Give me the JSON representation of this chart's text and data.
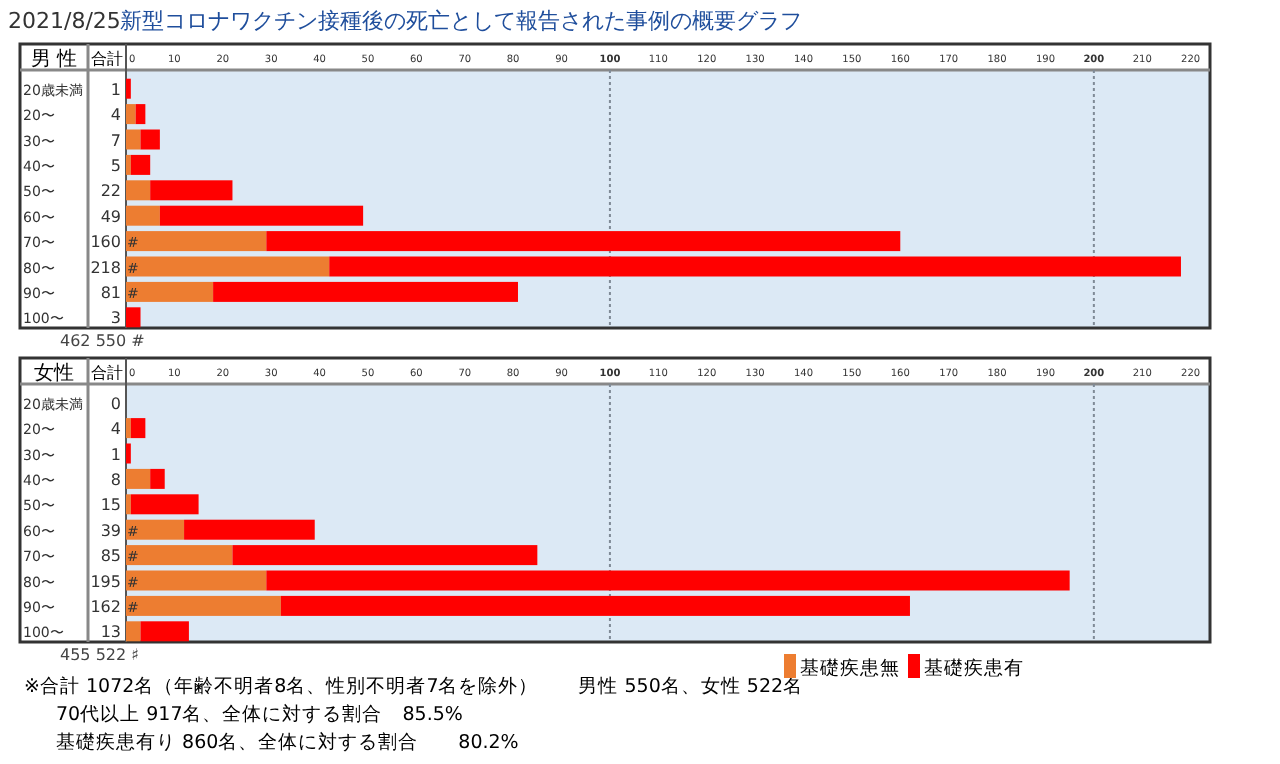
{
  "chart_data": [
    {
      "type": "bar",
      "orientation": "horizontal",
      "stacked": true,
      "title": "2021/8/25",
      "subtitle": "新型コロナワクチン接種後の死亡として報告された事例の概要グラフ",
      "ylabel": "男 性",
      "categories": [
        "20歳未満",
        "20〜",
        "30〜",
        "40〜",
        "50〜",
        "60〜",
        "70〜",
        "80〜",
        "90〜",
        "100〜"
      ],
      "series": [
        {
          "color": "#ed7d31",
          "values": [
            0,
            2,
            3,
            1,
            5,
            7,
            29,
            42,
            18,
            0
          ],
          "value_labels": [
            null,
            null,
            null,
            null,
            null,
            null,
            "#",
            "#",
            "#",
            null
          ]
        },
        {
          "color": "#ff0000",
          "values": [
            1,
            2,
            4,
            4,
            17,
            42,
            131,
            176,
            63,
            3
          ]
        }
      ],
      "totals": [
        "1",
        "4",
        "7",
        "5",
        "22",
        "49",
        "160",
        "218",
        "81",
        "3"
      ],
      "xlim": [
        0,
        224
      ],
      "xticks": [
        0,
        10,
        20,
        30,
        40,
        50,
        60,
        70,
        80,
        90,
        100,
        110,
        120,
        130,
        140,
        150,
        160,
        170,
        180,
        190,
        200,
        210,
        220
      ],
      "ref_lines": [
        {
          "axis": "x",
          "value": 100,
          "line_style": "dotted",
          "color": "#7f8a96"
        },
        {
          "axis": "x",
          "value": 200,
          "line_style": "dotted",
          "color": "#7f8a96"
        }
      ],
      "annotations": [
        "合計",
        "462  550 #"
      ],
      "legend": false,
      "grid": false
    },
    {
      "type": "bar",
      "orientation": "horizontal",
      "stacked": true,
      "ylabel": "女性",
      "categories": [
        "20歳未満",
        "20〜",
        "30〜",
        "40〜",
        "50〜",
        "60〜",
        "70〜",
        "80〜",
        "90〜",
        "100〜"
      ],
      "series": [
        {
          "name": "基礎疾患無",
          "color": "#ed7d31",
          "values": [
            0,
            1,
            0,
            5,
            1,
            12,
            22,
            29,
            32,
            3
          ],
          "value_labels": [
            null,
            null,
            null,
            null,
            null,
            "#",
            "#",
            "#",
            "#",
            null
          ]
        },
        {
          "name": "基礎疾患有",
          "color": "#ff0000",
          "values": [
            0,
            3,
            1,
            3,
            14,
            27,
            63,
            166,
            130,
            10
          ]
        }
      ],
      "totals": [
        "0",
        "4",
        "1",
        "8",
        "15",
        "39",
        "85",
        "195",
        "162",
        "13"
      ],
      "xlim": [
        0,
        224
      ],
      "xticks": [
        0,
        10,
        20,
        30,
        40,
        50,
        60,
        70,
        80,
        90,
        100,
        110,
        120,
        130,
        140,
        150,
        160,
        170,
        180,
        190,
        200,
        210,
        220
      ],
      "ref_lines": [
        {
          "axis": "x",
          "value": 100,
          "line_style": "dotted",
          "color": "#7f8a96"
        },
        {
          "axis": "x",
          "value": 200,
          "line_style": "dotted",
          "color": "#7f8a96"
        }
      ],
      "annotations": [
        "合計",
        "455 522 ♯",
        "※合計 1072名（年齢不明者8名、性別不明者7名を除外）　　男性 550名、女性 522名",
        "70代以上 917名、全体に対する割合　85.5%",
        "基礎疾患有り 860名、全体に対する割合　　80.2%"
      ],
      "legend": "bottom right",
      "grid": false
    }
  ]
}
